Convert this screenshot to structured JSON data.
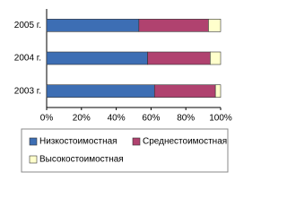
{
  "chart_data": {
    "type": "stacked-bar-horizontal",
    "categories": [
      "2005 г.",
      "2004 г.",
      "2003 г."
    ],
    "series": [
      {
        "name": "Низкостоимостная",
        "color": "#3d6eb4",
        "values": [
          53,
          58,
          62
        ]
      },
      {
        "name": "Среднестоимостная",
        "color": "#b0426f",
        "values": [
          40,
          36,
          35
        ]
      },
      {
        "name": "Высокостоимостная",
        "color": "#ffffcc",
        "values": [
          7,
          6,
          3
        ]
      }
    ],
    "xlim": [
      0,
      100
    ],
    "xticks": [
      {
        "value": 0,
        "label": "0%"
      },
      {
        "value": 20,
        "label": "20%"
      },
      {
        "value": 40,
        "label": "40%"
      },
      {
        "value": 60,
        "label": "60%"
      },
      {
        "value": 80,
        "label": "80%"
      },
      {
        "value": 100,
        "label": "100%"
      }
    ],
    "grid": false
  }
}
